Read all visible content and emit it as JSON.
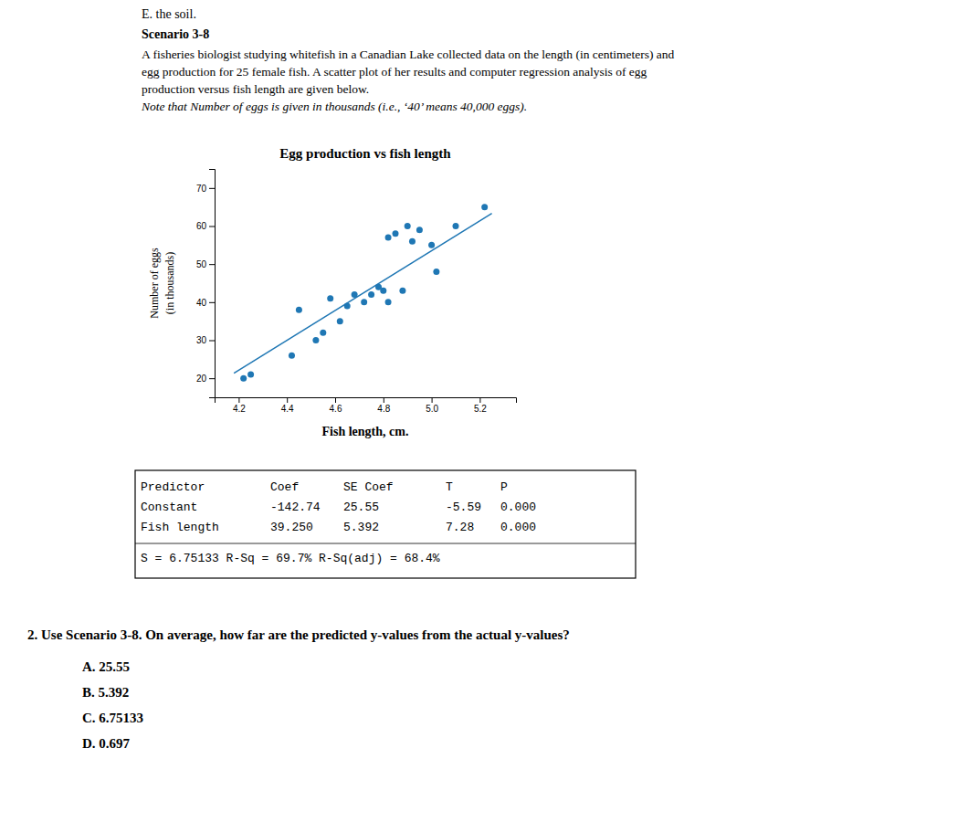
{
  "chart_data": {
    "type": "scatter",
    "title": "Egg production vs fish length",
    "x_label": "Fish length, cm.",
    "y_label": [
      "Number of eggs",
      "(in thousands)"
    ],
    "series": [
      {
        "type": "scatter",
        "x": [
          4.22,
          4.25,
          4.42,
          4.45,
          4.52,
          4.55,
          4.58,
          4.62,
          4.65,
          4.68,
          4.72,
          4.75,
          4.78,
          4.8,
          4.82,
          4.82,
          4.85,
          4.88,
          4.9,
          4.92,
          4.95,
          5.0,
          5.02,
          5.1,
          5.22
        ],
        "values": [
          20,
          21,
          26,
          38,
          30,
          32,
          41,
          35,
          39,
          42,
          40,
          42,
          44,
          43,
          57,
          40,
          58,
          43,
          60,
          56,
          59,
          55,
          48,
          60,
          65
        ]
      },
      {
        "type": "line",
        "x": [
          4.18,
          5.25
        ],
        "values": [
          21.325,
          63.3225
        ]
      }
    ],
    "xlim": [
      4.1,
      5.35
    ],
    "ylim": [
      15,
      75
    ],
    "xticks": [
      4.2,
      4.4,
      4.6,
      4.8,
      {
        "value": 5.0,
        "label": "5.0"
      },
      5.2
    ],
    "yticks": [
      20,
      30,
      40,
      50,
      60,
      70
    ],
    "grid": false
  },
  "header": {
    "top_label": "E.  the soil.",
    "title": "Scenario 3-8",
    "lines": [
      "A fisheries biologist studying whitefish in a Canadian Lake collected data on the length (in centimeters) and",
      "egg production for 25 female fish.  A scatter plot of her results and computer regression analysis of egg",
      "production versus fish length are given below.",
      "Note that Number of eggs is given in thousands (i.e., ‘40’ means 40,000 eggs)."
    ]
  },
  "table": {
    "columns": [
      "Predictor",
      "Coef",
      "SE Coef",
      "T",
      "P"
    ],
    "rows": [
      [
        "Constant",
        "-142.74",
        "25.55",
        "-5.59",
        "0.000"
      ],
      [
        "Fish length",
        "39.250",
        "5.392",
        "7.28",
        "0.000"
      ]
    ],
    "footer": "S = 6.75133    R-Sq = 69.7%    R-Sq(adj) = 68.4%"
  },
  "question": {
    "text": "2.  Use Scenario 3-8. On average, how far are the predicted y-values from the actual y-values?",
    "answers": [
      "A.  25.55",
      "B.  5.392",
      "C.  6.75133",
      "D.  0.697"
    ]
  }
}
